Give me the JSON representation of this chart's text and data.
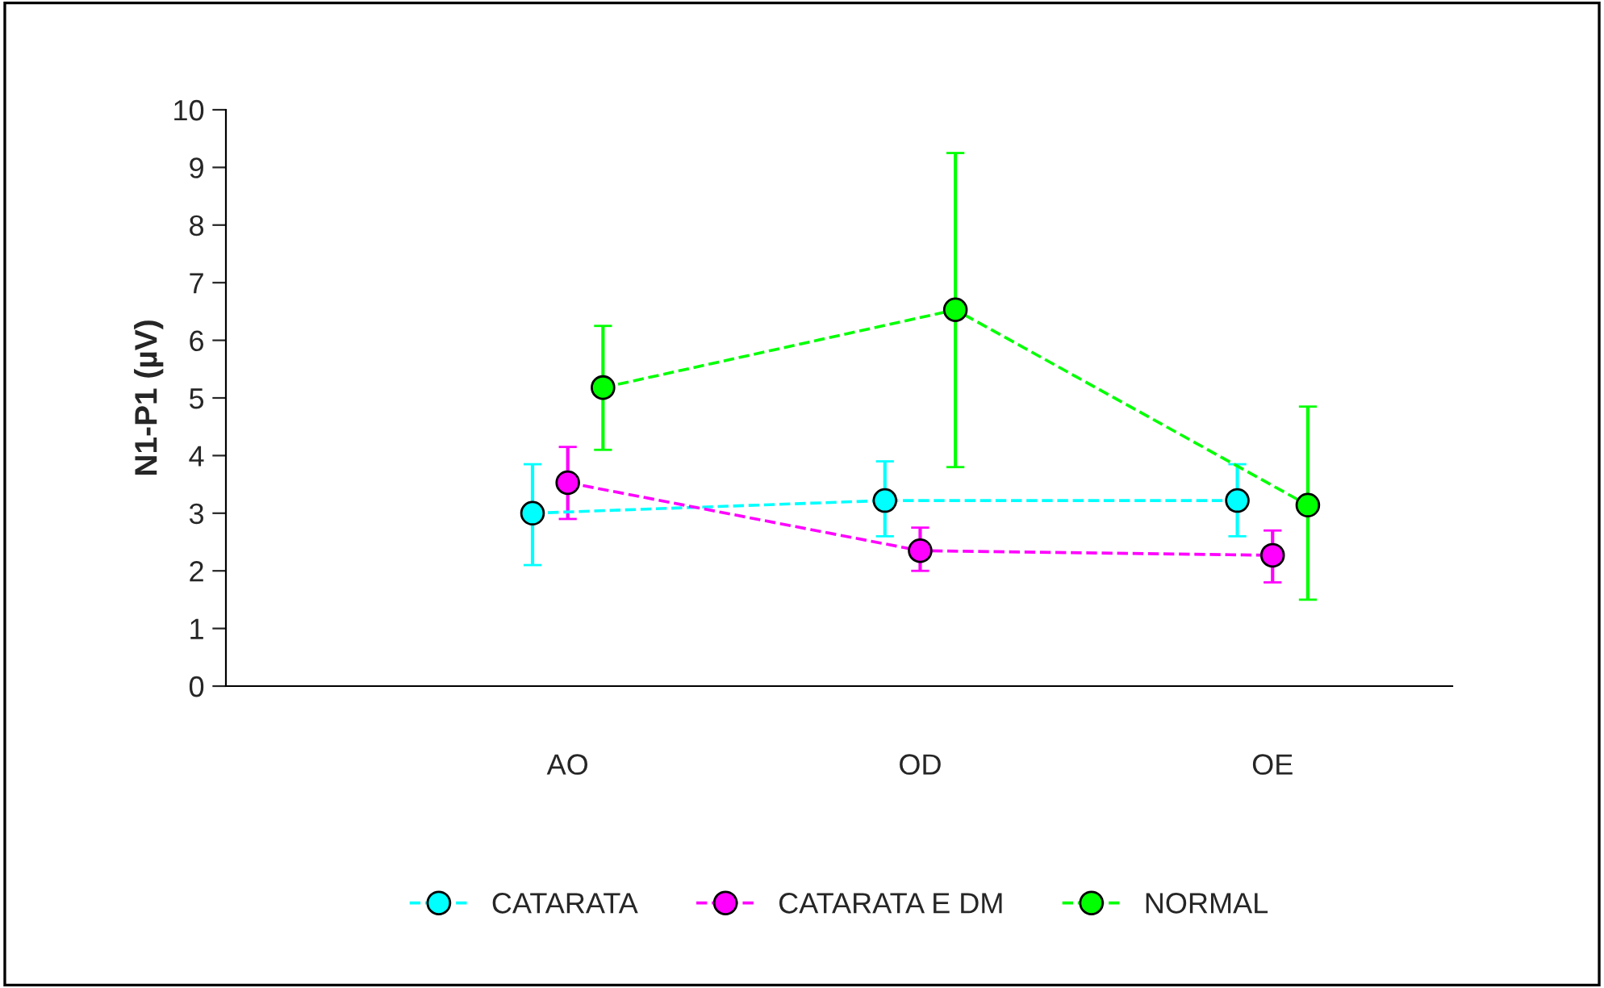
{
  "chart_data": {
    "type": "line",
    "ylabel": "N1-P1 (µV)",
    "categories": [
      "AO",
      "OD",
      "OE"
    ],
    "series": [
      {
        "name": "CATARATA",
        "color": "#00ffff",
        "values": [
          3.0,
          3.22,
          3.22
        ],
        "errors": [
          [
            2.1,
            3.85
          ],
          [
            2.6,
            3.9
          ],
          [
            2.6,
            3.85
          ]
        ]
      },
      {
        "name": "CATARATA E DM",
        "color": "#ff00ff",
        "values": [
          3.53,
          2.35,
          2.27
        ],
        "errors": [
          [
            2.9,
            4.15
          ],
          [
            2.0,
            2.75
          ],
          [
            1.8,
            2.7
          ]
        ]
      },
      {
        "name": "NORMAL",
        "color": "#00ff00",
        "values": [
          5.18,
          6.53,
          3.14
        ],
        "errors": [
          [
            4.1,
            6.25
          ],
          [
            3.8,
            9.25
          ],
          [
            1.5,
            4.85
          ]
        ]
      }
    ],
    "ylim": [
      0,
      10
    ],
    "yticks": [
      0,
      1,
      2,
      3,
      4,
      5,
      6,
      7,
      8,
      9,
      10
    ],
    "grid": false,
    "legend": "bottom",
    "marker": "circle",
    "line_style": "dashed"
  }
}
